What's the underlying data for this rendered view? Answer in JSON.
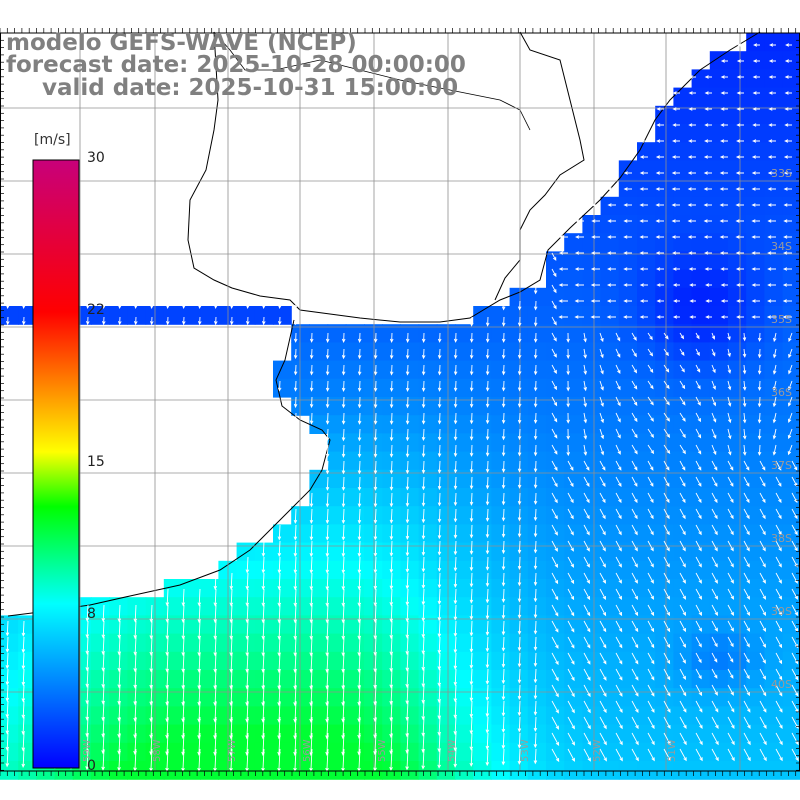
{
  "title": {
    "line1": "modelo GEFS-WAVE (NCEP)",
    "line2": "forecast date: 2025-10-28 00:00:00",
    "line3": "valid date: 2025-10-31 15:00:00"
  },
  "colorbar": {
    "unit": "[m/s]",
    "min": 0,
    "max": 30,
    "tick_labels": [
      "30",
      "22",
      "15",
      "8",
      "0"
    ],
    "tick_values": [
      30,
      22,
      15,
      8,
      0
    ],
    "colors": [
      "#0000ff",
      "#00ffff",
      "#00ff00",
      "#ffff00",
      "#ff0000",
      "#c8007a"
    ]
  },
  "map": {
    "lat_labels": [
      "33S",
      "34S",
      "35S",
      "36S",
      "37S",
      "38S",
      "39S",
      "40S"
    ],
    "lon_labels": [
      "59W",
      "58W",
      "57W",
      "56W",
      "55W",
      "54W",
      "53W",
      "52W",
      "51W"
    ],
    "land_color": "#ffffff",
    "grid_color": "#909090",
    "vector_color": "#ffffff"
  }
}
